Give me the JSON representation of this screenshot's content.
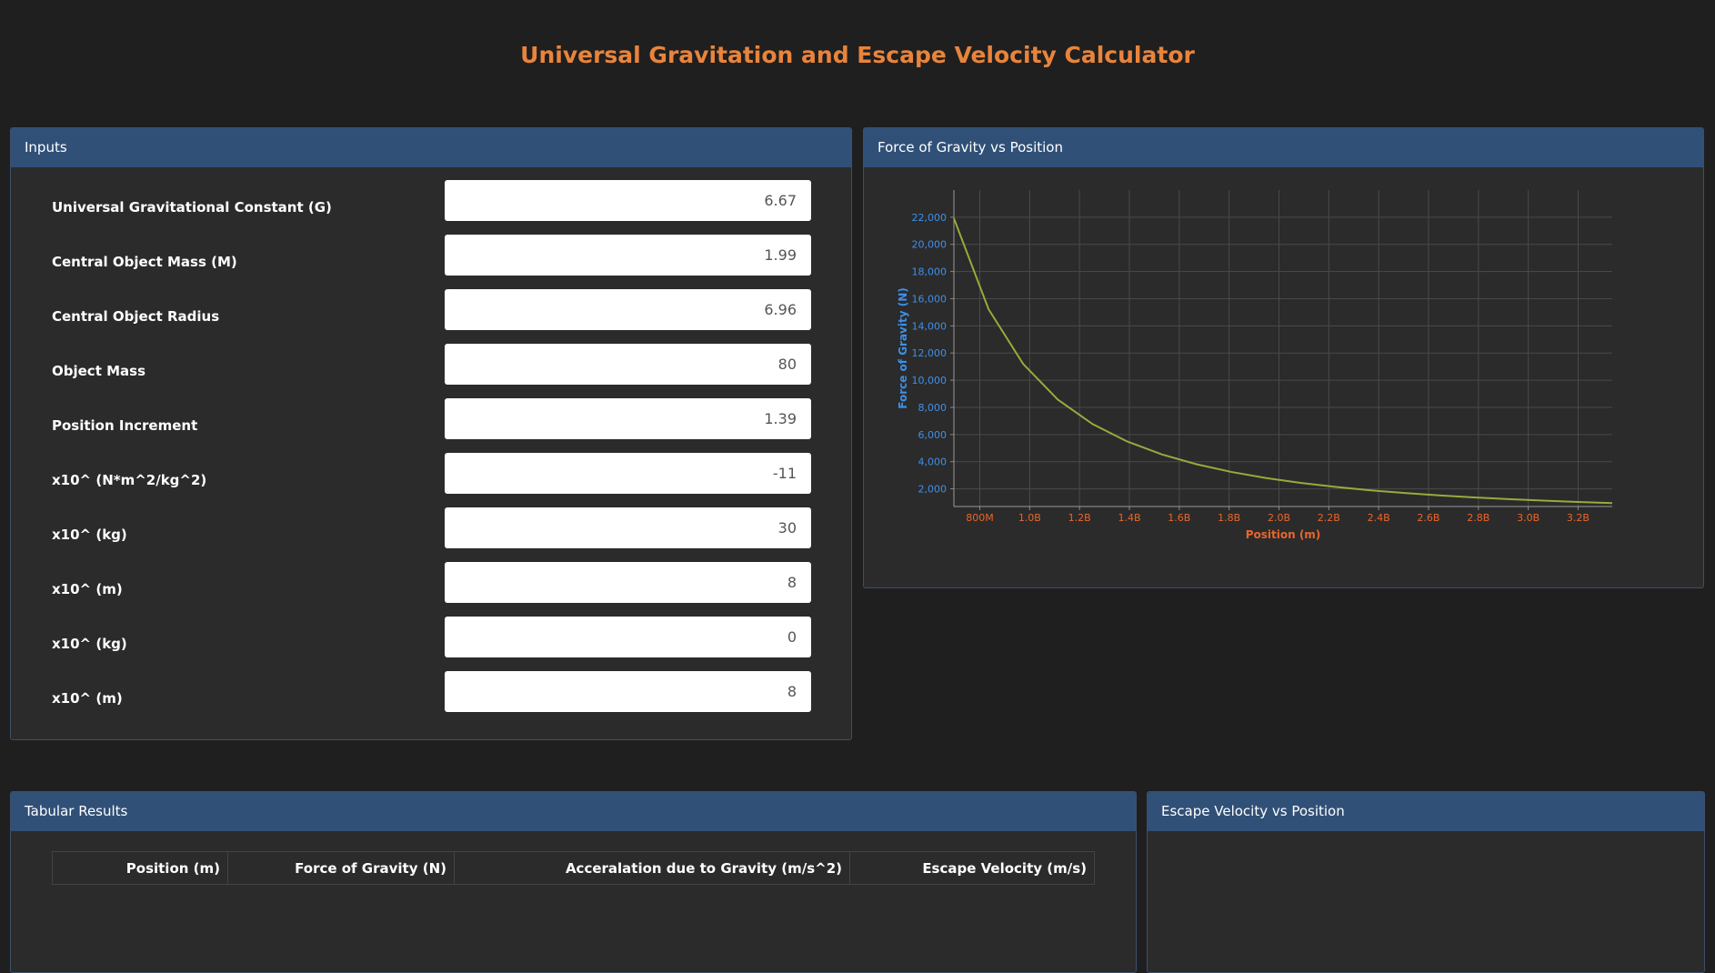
{
  "title": "Universal Gravitation and Escape Velocity Calculator",
  "inputs": {
    "title": "Inputs",
    "fields": [
      {
        "label": "Universal Gravitational Constant (G)",
        "value": 6.67
      },
      {
        "label": "Central Object Mass (M)",
        "value": 1.99
      },
      {
        "label": "Central Object Radius",
        "value": 6.96
      },
      {
        "label": "Object Mass",
        "value": 80
      },
      {
        "label": "Position Increment",
        "value": 1.39
      },
      {
        "label": "x10^ (N*m^2/kg^2)",
        "value": -11
      },
      {
        "label": "x10^ (kg)",
        "value": 30
      },
      {
        "label": "x10^ (m)",
        "value": 8
      },
      {
        "label": "x10^ (kg)",
        "value": 0
      },
      {
        "label": "x10^ (m)",
        "value": 8
      }
    ]
  },
  "chart_data": {
    "type": "line",
    "title": "Force of Gravity vs Position",
    "x_label": "Position (m)",
    "y_label": "Force of Gravity (N)",
    "x": [
      696000000,
      835000000,
      974000000,
      1113000000,
      1252000000,
      1391000000,
      1530000000,
      1669000000,
      1808000000,
      1947000000,
      2086000000,
      2225000000,
      2364000000,
      2503000000,
      2642000000,
      2781000000,
      2920000000,
      3059000000,
      3198000000,
      3337000000
    ],
    "series": [
      {
        "name": "Force of Gravity",
        "color": "#9aaa3c",
        "values": [
          21920,
          15230,
          11193,
          8572,
          6774,
          5488,
          4536,
          3812,
          3248,
          2801,
          2440,
          2145,
          1900,
          1695,
          1521,
          1373,
          1245,
          1135,
          1038,
          954
        ]
      }
    ],
    "xlim": [
      696000000,
      3337000000
    ],
    "ylim": [
      700,
      24000
    ],
    "xticks": [
      {
        "value": 800000000,
        "label": "800M"
      },
      {
        "value": 1000000000,
        "label": "1.0B"
      },
      {
        "value": 1200000000,
        "label": "1.2B"
      },
      {
        "value": 1400000000,
        "label": "1.4B"
      },
      {
        "value": 1600000000,
        "label": "1.6B"
      },
      {
        "value": 1800000000,
        "label": "1.8B"
      },
      {
        "value": 2000000000,
        "label": "2.0B"
      },
      {
        "value": 2200000000,
        "label": "2.2B"
      },
      {
        "value": 2400000000,
        "label": "2.4B"
      },
      {
        "value": 2600000000,
        "label": "2.6B"
      },
      {
        "value": 2800000000,
        "label": "2.8B"
      },
      {
        "value": 3000000000,
        "label": "3.0B"
      },
      {
        "value": 3200000000,
        "label": "3.2B"
      }
    ],
    "yticks": [
      {
        "value": 2000,
        "label": "2,000"
      },
      {
        "value": 4000,
        "label": "4,000"
      },
      {
        "value": 6000,
        "label": "6,000"
      },
      {
        "value": 8000,
        "label": "8,000"
      },
      {
        "value": 10000,
        "label": "10,000"
      },
      {
        "value": 12000,
        "label": "12,000"
      },
      {
        "value": 14000,
        "label": "14,000"
      },
      {
        "value": 16000,
        "label": "16,000"
      },
      {
        "value": 18000,
        "label": "18,000"
      },
      {
        "value": 20000,
        "label": "20,000"
      },
      {
        "value": 22000,
        "label": "22,000"
      }
    ],
    "grid": true
  },
  "table": {
    "title": "Tabular Results",
    "headers": [
      "Position (m)",
      "Force of Gravity (N)",
      "Acceralation due to Gravity (m/s^2)",
      "Escape Velocity (m/s)"
    ]
  },
  "escape_chart": {
    "title": "Escape Velocity vs Position"
  }
}
